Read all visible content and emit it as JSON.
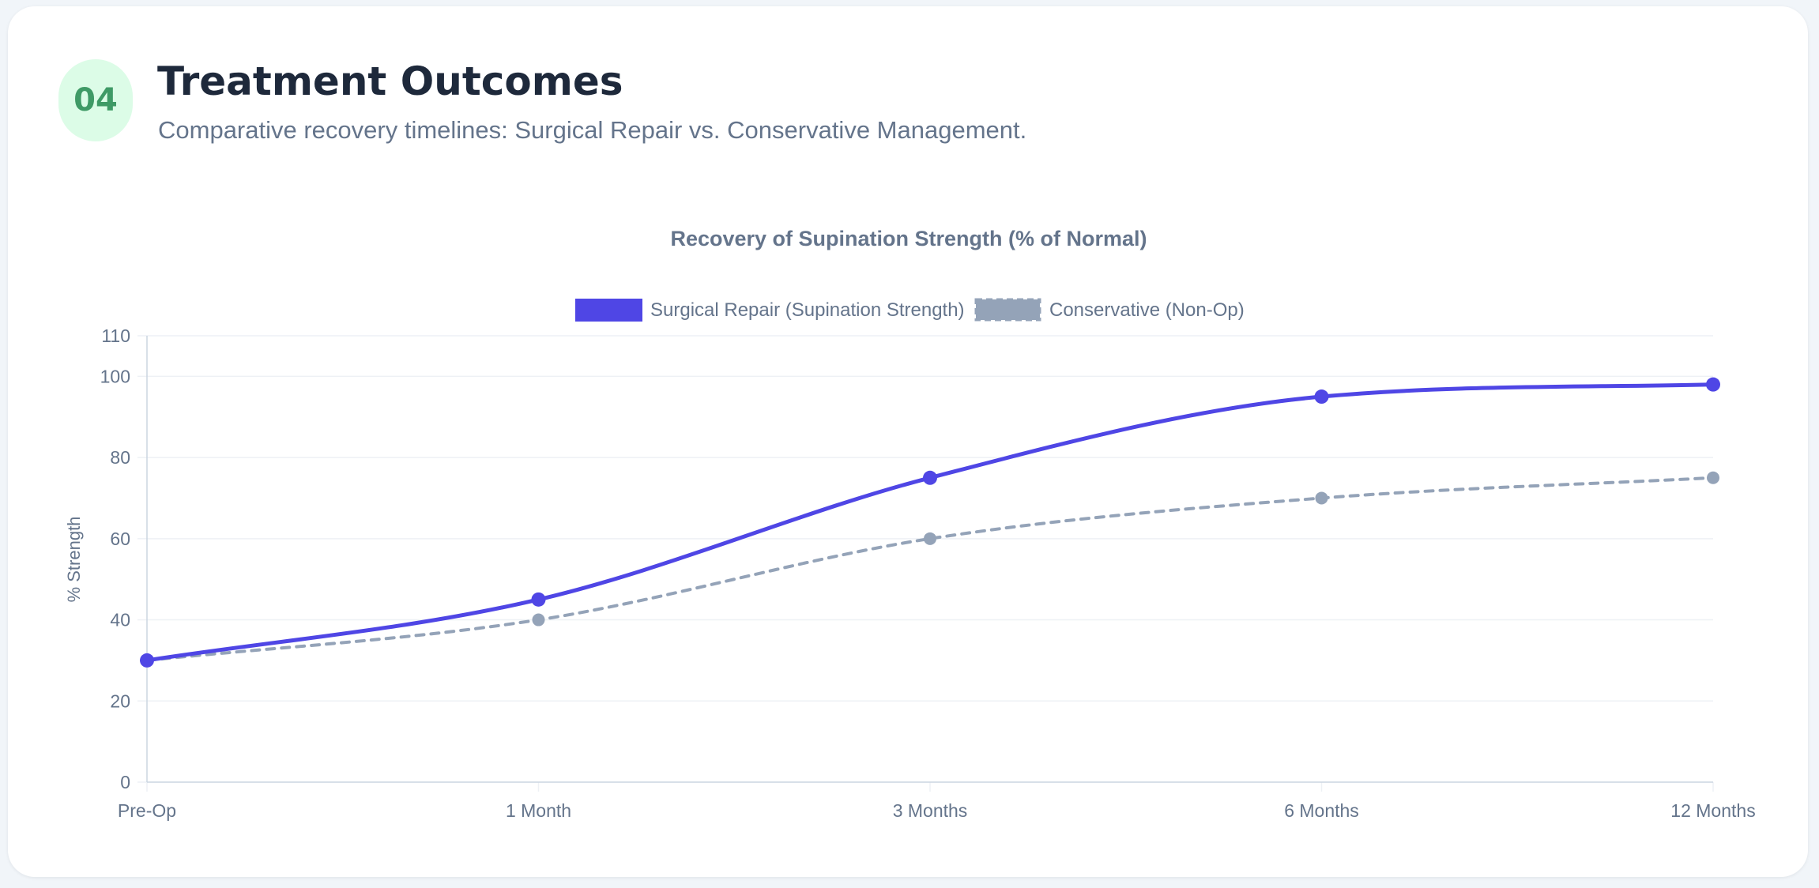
{
  "section": {
    "number": "04",
    "title": "Treatment Outcomes",
    "subtitle": "Comparative recovery timelines: Surgical Repair vs. Conservative Management."
  },
  "colors": {
    "surgical": "#4f46e5",
    "conservative": "#94a3b8",
    "grid": "#eef1f5",
    "axis": "#cbd5e1"
  },
  "chart_data": {
    "type": "line",
    "title": "Recovery of Supination Strength (% of Normal)",
    "xlabel": "",
    "ylabel": "% Strength",
    "categories": [
      "Pre-Op",
      "1 Month",
      "3 Months",
      "6 Months",
      "12 Months"
    ],
    "ylim": [
      0,
      110
    ],
    "yticks": [
      0,
      20,
      40,
      60,
      80,
      100,
      110
    ],
    "grid": true,
    "legend_position": "top-center",
    "series": [
      {
        "name": "Surgical Repair (Supination Strength)",
        "values": [
          30,
          45,
          75,
          95,
          98
        ],
        "style": "solid"
      },
      {
        "name": "Conservative (Non-Op)",
        "values": [
          30,
          40,
          60,
          70,
          75
        ],
        "style": "dashed"
      }
    ]
  }
}
